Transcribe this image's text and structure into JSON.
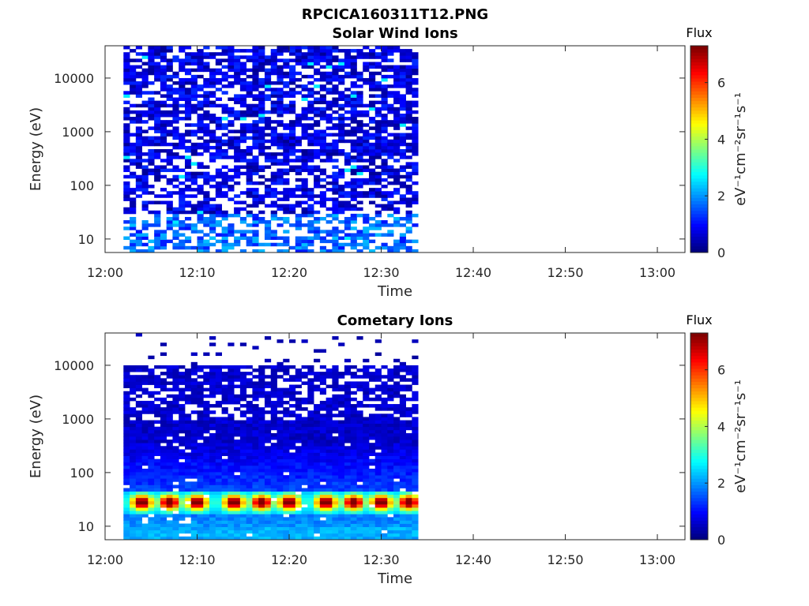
{
  "figure_title": "RPCICA160311T12.PNG",
  "colorbar": {
    "title": "Flux",
    "label": "eV⁻¹cm⁻²sr⁻¹s⁻¹",
    "ticks": [
      "0",
      "2",
      "4",
      "6"
    ],
    "range": [
      0,
      7.3
    ],
    "colormap": "jet"
  },
  "chart_data": [
    {
      "type": "heatmap",
      "title": "Solar Wind Ions",
      "xlabel": "Time",
      "ylabel": "Energy (eV)",
      "x_ticks": [
        "12:00",
        "12:10",
        "12:20",
        "12:30",
        "12:40",
        "12:50",
        "13:00"
      ],
      "x_range_minutes": [
        0,
        63
      ],
      "data_time_span": [
        "12:02",
        "12:34"
      ],
      "y_ticks": [
        "10",
        "100",
        "1000",
        "10000"
      ],
      "y_scale": "log",
      "y_range_eV": [
        5.6,
        40000
      ],
      "time_bins": 48,
      "energy_bins": 64,
      "peak_flux": 2.6,
      "typical_flux": "0.5-1.5",
      "note_flux": "sparse low flux across all energies; higher values below ~30 eV"
    },
    {
      "type": "heatmap",
      "title": "Cometary Ions",
      "xlabel": "Time",
      "ylabel": "Energy (eV)",
      "x_ticks": [
        "12:00",
        "12:10",
        "12:20",
        "12:30",
        "12:40",
        "12:50",
        "13:00"
      ],
      "x_range_minutes": [
        0,
        63
      ],
      "data_time_span": [
        "12:02",
        "12:34"
      ],
      "y_ticks": [
        "10",
        "100",
        "1000",
        "10000"
      ],
      "y_scale": "log",
      "y_range_eV": [
        5.6,
        40000
      ],
      "time_bins": 48,
      "energy_bins": 64,
      "peak_flux": 5.8,
      "peak_energy_eV": 28,
      "peak_times": [
        "12:04",
        "12:07",
        "12:10",
        "12:14",
        "12:17",
        "12:20",
        "12:24",
        "12:27",
        "12:30",
        "12:33"
      ],
      "note_flux": "high-energy cutoff near 10 keV; intense band near 20-40 eV"
    }
  ]
}
